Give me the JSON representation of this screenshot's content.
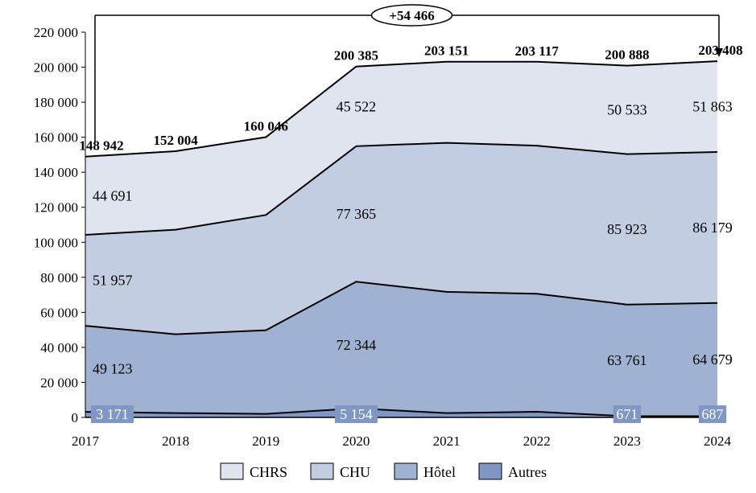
{
  "chart_data": {
    "type": "area",
    "stacked": true,
    "categories": [
      "2017",
      "2018",
      "2019",
      "2020",
      "2021",
      "2022",
      "2023",
      "2024"
    ],
    "ylim": [
      0,
      220000
    ],
    "yticks": [
      0,
      20000,
      40000,
      60000,
      80000,
      100000,
      120000,
      140000,
      160000,
      180000,
      200000,
      220000
    ],
    "ytick_labels": [
      "0",
      "20 000",
      "40 000",
      "60 000",
      "80 000",
      "100 000",
      "120 000",
      "140 000",
      "160 000",
      "180 000",
      "200 000",
      "220 000"
    ],
    "legend_position": "bottom",
    "series": [
      {
        "name": "Autres",
        "color": "#7e97c5",
        "values": [
          3171,
          2500,
          2000,
          5154,
          2500,
          3200,
          671,
          687
        ],
        "labels": [
          {
            "index": 0,
            "text": "3 171"
          },
          {
            "index": 3,
            "text": "5 154"
          },
          {
            "index": 6,
            "text": "671"
          },
          {
            "index": 7,
            "text": "687"
          }
        ]
      },
      {
        "name": "Hôtel",
        "color": "#9fb2d2",
        "values": [
          49123,
          45000,
          47800,
          72344,
          69200,
          67400,
          63761,
          64679
        ],
        "labels": [
          {
            "index": 0,
            "text": "49 123"
          },
          {
            "index": 3,
            "text": "72 344"
          },
          {
            "index": 6,
            "text": "63 761"
          },
          {
            "index": 7,
            "text": "64 679"
          }
        ]
      },
      {
        "name": "CHU",
        "color": "#c3cde2",
        "values": [
          51957,
          59700,
          65800,
          77365,
          85100,
          84600,
          85923,
          86179
        ],
        "labels": [
          {
            "index": 0,
            "text": "51 957"
          },
          {
            "index": 3,
            "text": "77 365"
          },
          {
            "index": 6,
            "text": "85 923"
          },
          {
            "index": 7,
            "text": "86 179"
          }
        ]
      },
      {
        "name": "CHRS",
        "color": "#dfe4ef",
        "values": [
          44691,
          44804,
          44446,
          45522,
          46351,
          47917,
          50533,
          51863
        ],
        "labels": [
          {
            "index": 0,
            "text": "44 691"
          },
          {
            "index": 3,
            "text": "45 522"
          },
          {
            "index": 6,
            "text": "50 533"
          },
          {
            "index": 7,
            "text": "51 863"
          }
        ]
      }
    ],
    "totals": [
      148942,
      152004,
      160046,
      200385,
      203151,
      203117,
      200888,
      203408
    ],
    "total_labels": [
      "148 942",
      "152 004",
      "160 046",
      "200 385",
      "203 151",
      "203 117",
      "200 888",
      "203 408"
    ],
    "annotation": {
      "text": "+54 466",
      "from_index": 0,
      "to_index": 7
    }
  }
}
